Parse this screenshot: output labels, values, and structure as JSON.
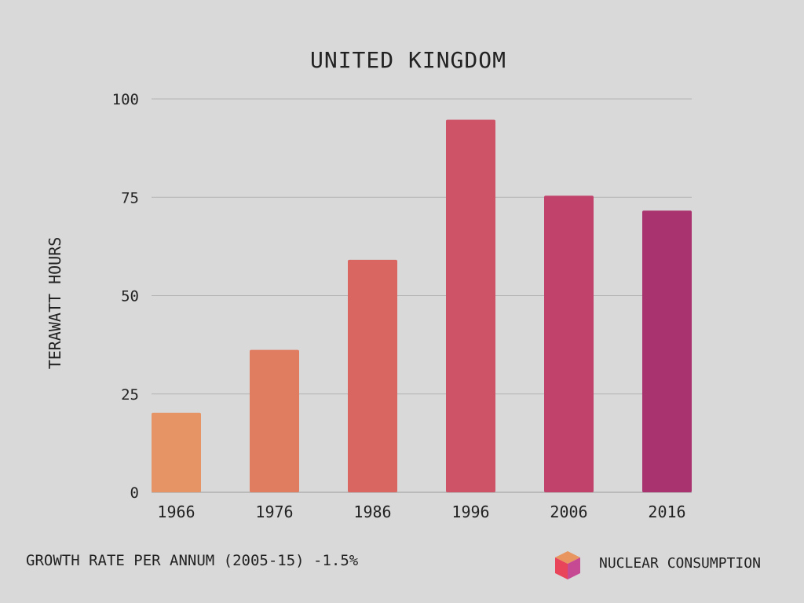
{
  "chart_data": {
    "type": "bar",
    "title": "UNITED KINGDOM",
    "xlabel": "",
    "ylabel": "TERAWATT HOURS",
    "categories": [
      "1966",
      "1976",
      "1986",
      "1996",
      "2006",
      "2016"
    ],
    "values": [
      20.2,
      36.2,
      59.1,
      94.7,
      75.4,
      71.6
    ],
    "ylim": [
      0,
      100
    ],
    "yticks": [
      "0",
      "25",
      "50",
      "75",
      "100"
    ],
    "grid": true,
    "colors": [
      "#e69465",
      "#e07d61",
      "#da6661",
      "#cf5367",
      "#c1426b",
      "#a9336e"
    ]
  },
  "footer": {
    "growth_rate": "GROWTH RATE PER ANNUM (2005-15) -1.5%",
    "legend_label": "NUCLEAR CONSUMPTION",
    "legend_icon": "cube-icon"
  }
}
